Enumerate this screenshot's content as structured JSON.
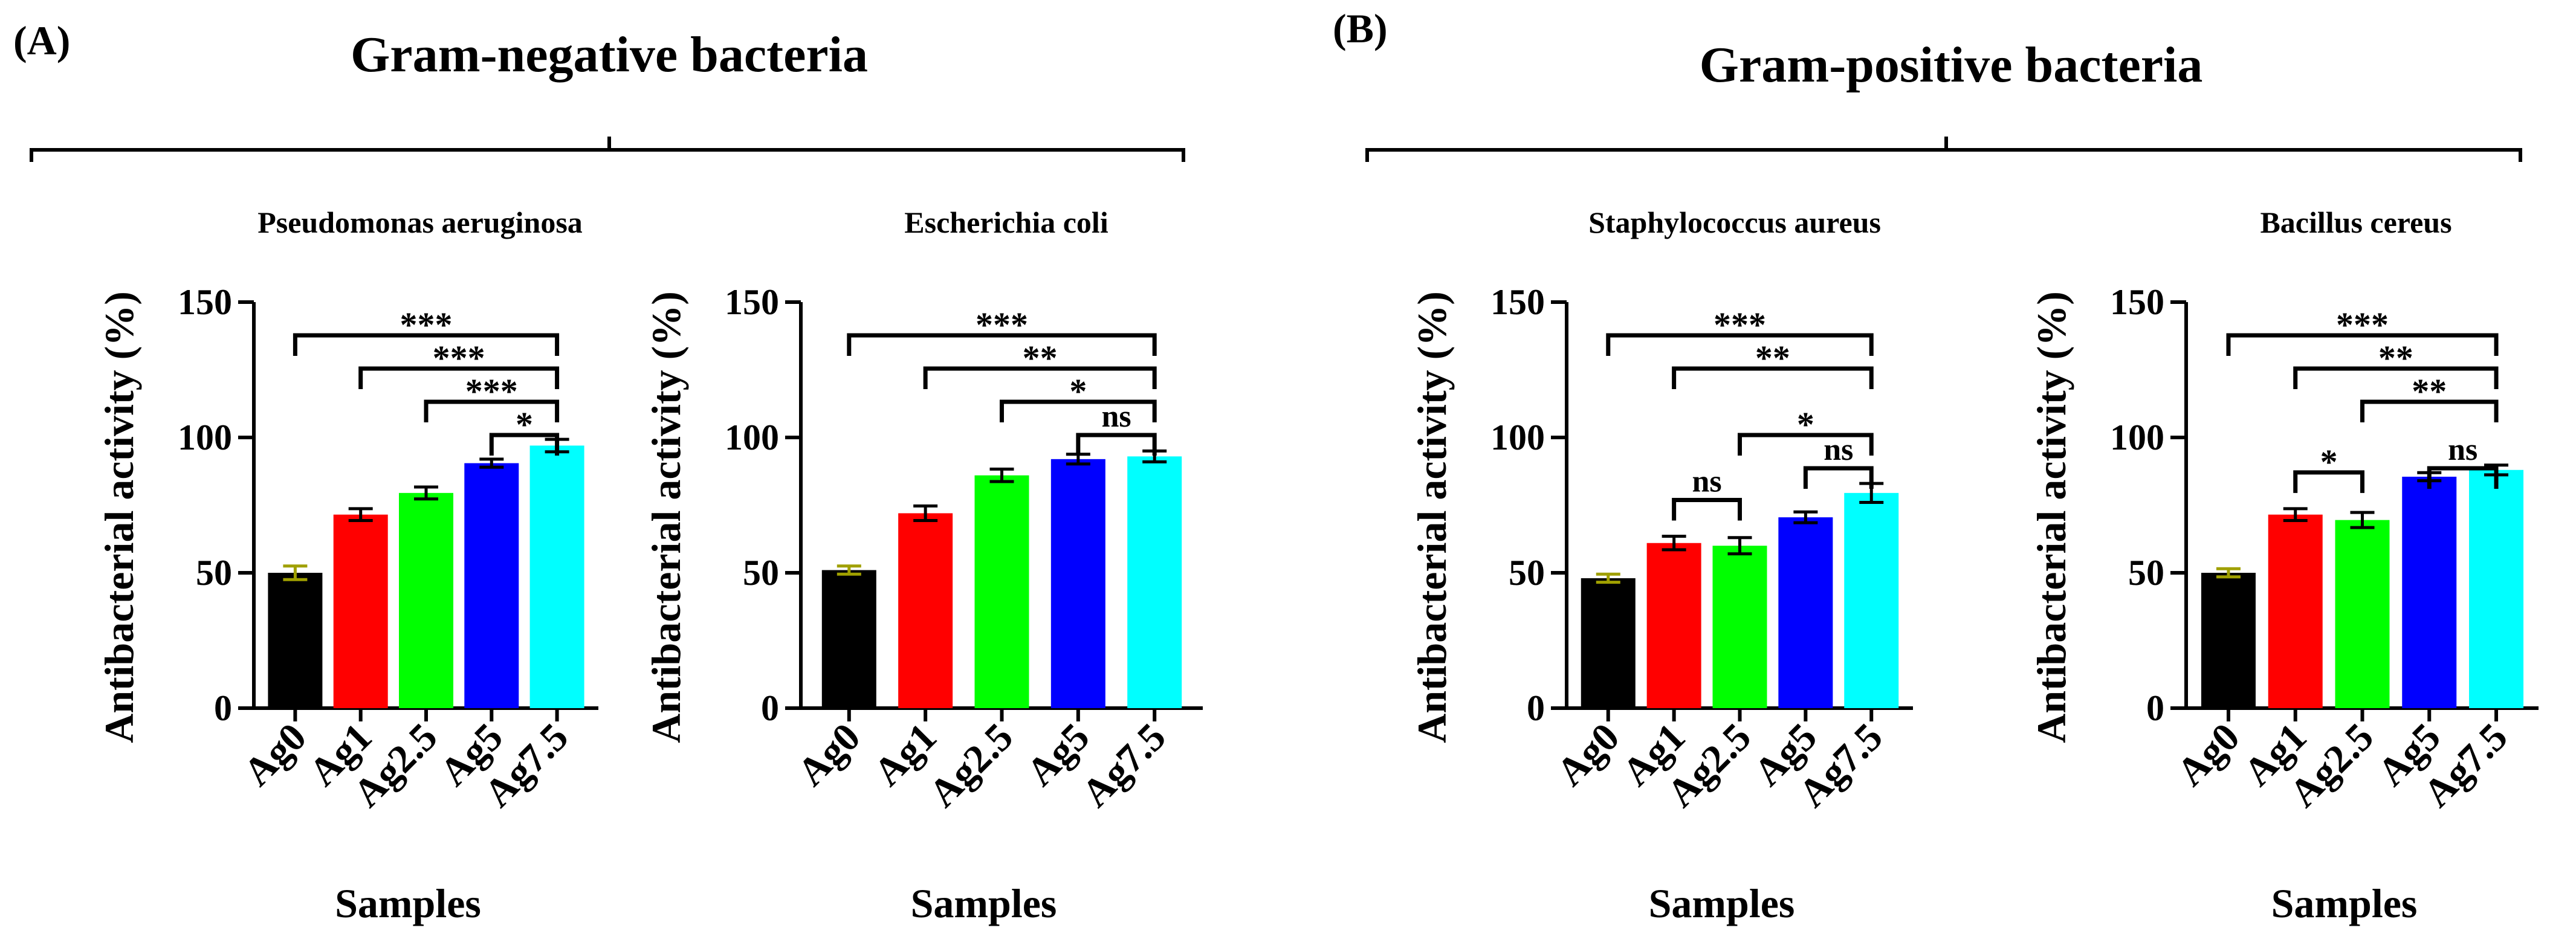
{
  "panels": [
    {
      "letter": "(A)",
      "group_title": "Gram-negative bacteria"
    },
    {
      "letter": "(B)",
      "group_title": "Gram-positive bacteria"
    }
  ],
  "colors": {
    "bars": [
      "#000000",
      "#ff0000",
      "#00ff00",
      "#0000ff",
      "#00ffff"
    ],
    "error_bar_first": "#a0a000",
    "axis": "#000000"
  },
  "chart_data": [
    {
      "type": "bar",
      "title": "Pseudomonas aeruginosa",
      "xlabel": "Samples",
      "ylabel": "Antibacterial activity (%)",
      "ylim": [
        0,
        150
      ],
      "yticks": [
        "0",
        "50",
        "100",
        "150"
      ],
      "categories": [
        "Ag0",
        "Ag1",
        "Ag2.5",
        "Ag5",
        "Ag7.5"
      ],
      "values": [
        50,
        71.5,
        79.5,
        90.5,
        97
      ],
      "errors": [
        2.5,
        2.2,
        2.2,
        1.5,
        2.3
      ],
      "significance": [
        {
          "from": 0,
          "to": 4,
          "label": "***"
        },
        {
          "from": 1,
          "to": 4,
          "label": "***"
        },
        {
          "from": 2,
          "to": 4,
          "label": "***"
        },
        {
          "from": 3,
          "to": 4,
          "label": "*"
        }
      ]
    },
    {
      "type": "bar",
      "title": "Escherichia coli",
      "xlabel": "Samples",
      "ylabel": "Antibacterial activity (%)",
      "ylim": [
        0,
        150
      ],
      "yticks": [
        "0",
        "50",
        "100",
        "150"
      ],
      "categories": [
        "Ag0",
        "Ag1",
        "Ag2.5",
        "Ag5",
        "Ag7.5"
      ],
      "values": [
        51,
        72,
        86,
        92,
        93
      ],
      "errors": [
        1.5,
        2.7,
        2.3,
        1.8,
        2.0
      ],
      "significance": [
        {
          "from": 0,
          "to": 4,
          "label": "***"
        },
        {
          "from": 1,
          "to": 4,
          "label": "**"
        },
        {
          "from": 2,
          "to": 4,
          "label": "*"
        },
        {
          "from": 3,
          "to": 4,
          "label": "ns"
        }
      ]
    },
    {
      "type": "bar",
      "title": "Staphylococcus aureus",
      "xlabel": "Samples",
      "ylabel": "Antibacterial activity (%)",
      "ylim": [
        0,
        150
      ],
      "yticks": [
        "0",
        "50",
        "100",
        "150"
      ],
      "categories": [
        "Ag0",
        "Ag1",
        "Ag2.5",
        "Ag5",
        "Ag7.5"
      ],
      "values": [
        48,
        61,
        60,
        70.5,
        79.5
      ],
      "errors": [
        1.5,
        2.5,
        3.0,
        2.0,
        3.5
      ],
      "significance": [
        {
          "from": 0,
          "to": 4,
          "label": "***"
        },
        {
          "from": 1,
          "to": 4,
          "label": "**"
        },
        {
          "from": 1,
          "to": 2,
          "label": "ns"
        },
        {
          "from": 2,
          "to": 4,
          "label": "*"
        },
        {
          "from": 3,
          "to": 4,
          "label": "ns"
        }
      ]
    },
    {
      "type": "bar",
      "title": "Bacillus cereus",
      "xlabel": "Samples",
      "ylabel": "Antibacterial activity (%)",
      "ylim": [
        0,
        150
      ],
      "yticks": [
        "0",
        "50",
        "100",
        "150"
      ],
      "categories": [
        "Ag0",
        "Ag1",
        "Ag2.5",
        "Ag5",
        "Ag7.5"
      ],
      "values": [
        50,
        71.5,
        69.5,
        85.5,
        88
      ],
      "errors": [
        1.5,
        2.2,
        2.8,
        1.5,
        1.8
      ],
      "significance": [
        {
          "from": 0,
          "to": 4,
          "label": "***"
        },
        {
          "from": 1,
          "to": 4,
          "label": "**"
        },
        {
          "from": 2,
          "to": 4,
          "label": "**"
        },
        {
          "from": 1,
          "to": 2,
          "label": "*"
        },
        {
          "from": 3,
          "to": 4,
          "label": "ns"
        }
      ]
    }
  ]
}
